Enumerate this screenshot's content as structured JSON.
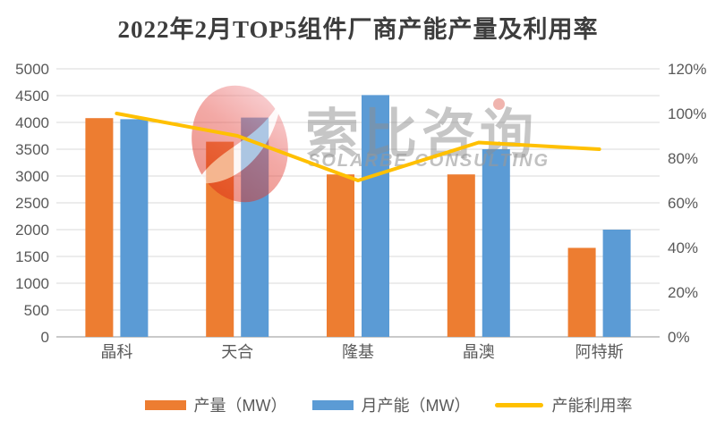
{
  "title": "2022年2月TOP5组件厂商产能产量及利用率",
  "watermark": {
    "cn": "索比咨询",
    "en": "SOLARBE CONSULTING"
  },
  "chart_data": {
    "type": "bar",
    "subtype": "combo-bar-line-dual-axis",
    "title": "2022年2月TOP5组件厂商产能产量及利用率",
    "categories": [
      "晶科",
      "天合",
      "隆基",
      "晶澳",
      "阿特斯"
    ],
    "series": [
      {
        "name": "产量（MW）",
        "type": "bar",
        "axis": "left",
        "color": "#ED7D31",
        "values": [
          4080,
          3640,
          3030,
          3030,
          1660
        ]
      },
      {
        "name": "月产能（MW）",
        "type": "bar",
        "axis": "left",
        "color": "#5B9BD5",
        "values": [
          4060,
          4090,
          4510,
          3500,
          2000
        ]
      },
      {
        "name": "产能利用率",
        "type": "line",
        "axis": "right",
        "color": "#FFC000",
        "values": [
          100,
          90,
          70,
          87,
          84
        ]
      }
    ],
    "left_axis": {
      "min": 0,
      "max": 5000,
      "step": 500,
      "tick_labels": [
        "0",
        "500",
        "1000",
        "1500",
        "2000",
        "2500",
        "3000",
        "3500",
        "4000",
        "4500",
        "5000"
      ]
    },
    "right_axis": {
      "min": 0,
      "max": 120,
      "step": 20,
      "tick_labels": [
        "0%",
        "20%",
        "40%",
        "60%",
        "80%",
        "100%",
        "120%"
      ]
    },
    "grid": true,
    "legend_position": "bottom",
    "colors": {
      "grid_line": "#d9d9d9",
      "axis_line": "#c9c9c9",
      "tick_text": "#595959",
      "title_text": "#3d3d3d"
    }
  }
}
